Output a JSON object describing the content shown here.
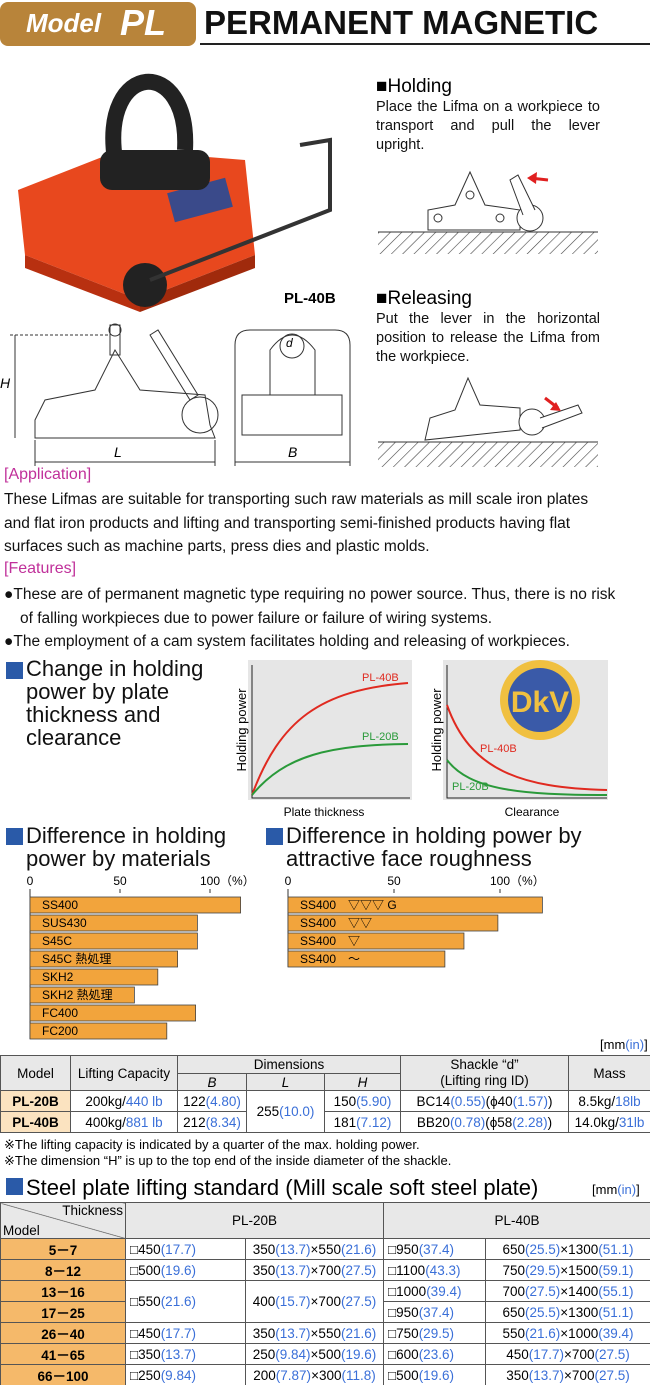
{
  "header": {
    "model_prefix": "Model",
    "model": "PL",
    "title": "PERMANENT MAGNETIC"
  },
  "photo_label": "PL-40B",
  "holding": {
    "title": "■Holding",
    "text": "Place the Lifma on a workpiece to transport and pull the lever upright."
  },
  "releasing": {
    "title": "■Releasing",
    "text": "Put the lever in the horizontal position to release the Lifma from the workpiece."
  },
  "drawing_labels": {
    "H": "H",
    "L": "L",
    "B": "B",
    "d": "d"
  },
  "application": {
    "heading": "[Application]",
    "text": "These Lifmas are suitable for transporting such raw materials as mill scale iron plates and flat iron products and lifting and transporting semi-finished products having flat surfaces such as machine parts, press dies and plastic molds."
  },
  "features": {
    "heading": "[Features]",
    "items": [
      "●These are of permanent magnetic type requiring no power source. Thus, there is no risk of falling workpieces due to power failure or failure of wiring systems.",
      "●The employment of a cam system facilitates holding and releasing of workpieces."
    ]
  },
  "holding_power_charts": {
    "title": "Change in holding power by plate thickness and clearance",
    "logo": "DkV",
    "charts": [
      {
        "y_label": "Holding power",
        "x_label": "Plate thickness",
        "series": [
          "PL-40B",
          "PL-20B"
        ]
      },
      {
        "y_label": "Holding power",
        "x_label": "Clearance",
        "series": [
          "PL-40B",
          "PL-20B"
        ]
      }
    ]
  },
  "material_chart": {
    "title": "Difference in holding power by materials",
    "categories": [
      "SS400",
      "SUS430",
      "S45C",
      "S45C 熱処理",
      "SKH2",
      "SKH2 熱処理",
      "FC400",
      "FC200"
    ],
    "values": [
      117,
      93,
      93,
      82,
      71,
      58,
      92,
      76
    ],
    "xlim": [
      0,
      120
    ],
    "xticks": [
      0,
      50,
      {
        "value": 100,
        "label": "100（%）"
      }
    ],
    "color": "#f2a43c"
  },
  "roughness_chart": {
    "title": "Difference in holding power by attractive face roughness",
    "categories": [
      "SS400　▽▽▽ G",
      "SS400　▽▽",
      "SS400　▽",
      "SS400　～"
    ],
    "values": [
      120,
      99,
      83,
      74
    ],
    "xlim": [
      0,
      120
    ],
    "xticks": [
      0,
      50,
      {
        "value": 100,
        "label": "100（%）"
      }
    ],
    "color": "#f2a43c"
  },
  "spec_table": {
    "unit_note": [
      "[mm",
      "(in)",
      "]"
    ],
    "header": {
      "model": "Model",
      "capacity": "Lifting Capacity",
      "dimensions": "Dimensions",
      "b": "B",
      "l": "L",
      "h": "H",
      "shackle": "Shackle “d”",
      "shackle_sub": "(Lifting ring ID)",
      "mass": "Mass"
    },
    "rows": [
      {
        "model": "PL-20B",
        "capacity": [
          "200kg/",
          "440 lb"
        ],
        "b": [
          "122",
          "(4.80)"
        ],
        "l": [
          "255",
          "(10.0)"
        ],
        "h": [
          "150",
          "(5.90)"
        ],
        "shackle": [
          "BC14",
          "(0.55)",
          "(ϕ40",
          "(1.57)",
          ")"
        ],
        "mass": [
          "8.5kg/",
          "18lb"
        ]
      },
      {
        "model": "PL-40B",
        "capacity": [
          "400kg/",
          "881 lb"
        ],
        "b": [
          "212",
          "(8.34)"
        ],
        "h": [
          "181",
          "(7.12)"
        ],
        "shackle": [
          "BB20",
          "(0.78)",
          "(ϕ58",
          "(2.28)",
          ")"
        ],
        "mass": [
          "14.0kg/",
          "31lb"
        ]
      }
    ],
    "notes": [
      "※The lifting capacity is indicated by a quarter of the max. holding power.",
      "※The dimension “H” is up to the top end of the inside diameter of the shackle."
    ]
  },
  "steel_table": {
    "title": "Steel plate lifting standard (Mill scale soft steel plate)",
    "unit_note": [
      "[mm",
      "(in)",
      "]"
    ],
    "header": {
      "thickness": "Thickness",
      "model": "Model",
      "pl20": "PL-20B",
      "pl40": "PL-40B"
    },
    "rows": [
      {
        "model": "5－7",
        "pl20": [
          [
            "□450",
            "(17.7)"
          ],
          [
            "350",
            "(13.7)",
            "×550",
            "(21.6)"
          ]
        ],
        "pl40": [
          [
            "□950",
            "(37.4)"
          ],
          [
            "650",
            "(25.5)",
            "×1300",
            "(51.1)"
          ]
        ]
      },
      {
        "model": "8－12",
        "pl20": [
          [
            "□500",
            "(19.6)"
          ],
          [
            "350",
            "(13.7)",
            "×700",
            "(27.5)"
          ]
        ],
        "pl40": [
          [
            "□1100",
            "(43.3)"
          ],
          [
            "750",
            "(29.5)",
            "×1500",
            "(59.1)"
          ]
        ]
      },
      {
        "model": "13－16",
        "pl20": [
          [
            "□550",
            "(21.6)"
          ],
          [
            "400",
            "(15.7)",
            "×700",
            "(27.5)"
          ]
        ],
        "pl40": [
          [
            "□1000",
            "(39.4)"
          ],
          [
            "700",
            "(27.5)",
            "×1400",
            "(55.1)"
          ]
        ]
      },
      {
        "model": "17－25",
        "pl40": [
          [
            "□950",
            "(37.4)"
          ],
          [
            "650",
            "(25.5)",
            "×1300",
            "(51.1)"
          ]
        ]
      },
      {
        "model": "26－40",
        "pl20": [
          [
            "□450",
            "(17.7)"
          ],
          [
            "350",
            "(13.7)",
            "×550",
            "(21.6)"
          ]
        ],
        "pl40": [
          [
            "□750",
            "(29.5)"
          ],
          [
            "550",
            "(21.6)",
            "×1000",
            "(39.4)"
          ]
        ]
      },
      {
        "model": "41－65",
        "pl20": [
          [
            "□350",
            "(13.7)"
          ],
          [
            "250",
            "(9.84)",
            "×500",
            "(19.6)"
          ]
        ],
        "pl40": [
          [
            "□600",
            "(23.6)"
          ],
          [
            "450",
            "(17.7)",
            "×700",
            "(27.5)"
          ]
        ]
      },
      {
        "model": "66－100",
        "pl20": [
          [
            "□250",
            "(9.84)"
          ],
          [
            "200",
            "(7.87)",
            "×300",
            "(11.8)"
          ]
        ],
        "pl40": [
          [
            "□500",
            "(19.6)"
          ],
          [
            "350",
            "(13.7)",
            "×700",
            "(27.5)"
          ]
        ]
      }
    ]
  }
}
